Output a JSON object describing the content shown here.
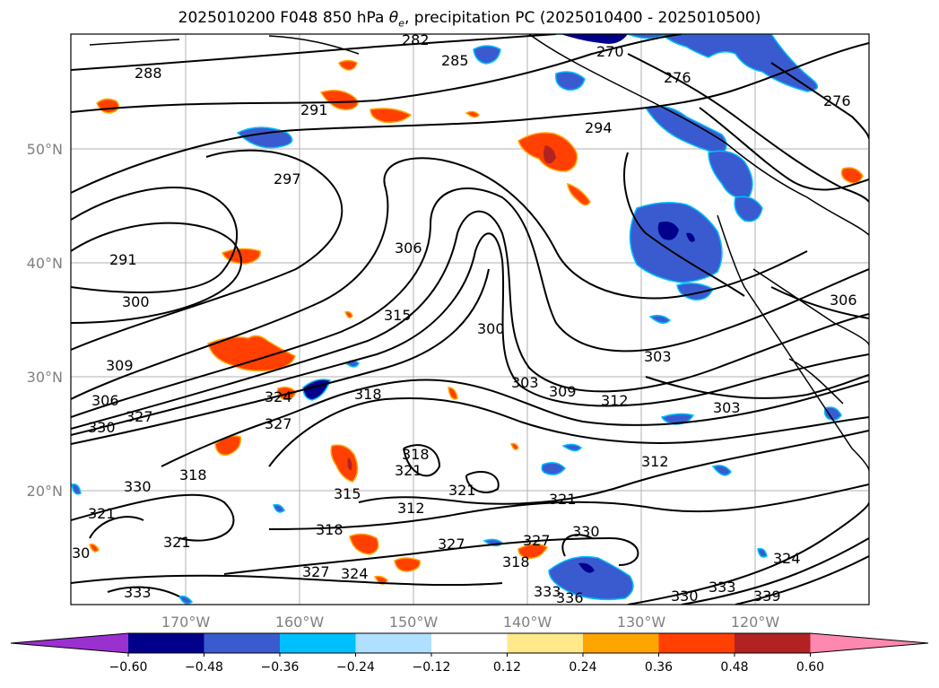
{
  "title_prefix": "2025010200 F048 850 hPa ",
  "title_symbol": "θ",
  "title_subscript": "e",
  "title_suffix": ", precipitation PC (2025010400 - 2025010500)",
  "lat_labels": [
    "50°N",
    "40°N",
    "30°N",
    "20°N"
  ],
  "lon_labels": [
    "170°W",
    "160°W",
    "150°W",
    "140°W",
    "130°W",
    "120°W"
  ],
  "colorbar": {
    "colors": [
      "#9b30d0",
      "#00008b",
      "#3a5bd0",
      "#00bfff",
      "#b0e0ff",
      "#ffffff",
      "#ffe98a",
      "#ffa500",
      "#ff4000",
      "#b22222",
      "#ff88b0"
    ],
    "tick_labels": [
      "−0.60",
      "−0.48",
      "−0.36",
      "−0.24",
      "−0.12",
      "0.12",
      "0.24",
      "0.36",
      "0.48",
      "0.60"
    ]
  },
  "contour_labels": [
    "288",
    "285",
    "270",
    "291",
    "294",
    "276",
    "297",
    "291",
    "306",
    "300",
    "315",
    "300",
    "309",
    "303",
    "303",
    "306",
    "324",
    "318",
    "309",
    "312",
    "303",
    "327",
    "330",
    "327",
    "318",
    "321",
    "312",
    "330",
    "318",
    "321",
    "321",
    "312",
    "318",
    "315",
    "321",
    "327",
    "327",
    "330",
    "321",
    "30",
    "324",
    "318",
    "327",
    "324",
    "333",
    "333",
    "336",
    "330",
    "339",
    "333",
    "306",
    "282",
    "276"
  ]
}
